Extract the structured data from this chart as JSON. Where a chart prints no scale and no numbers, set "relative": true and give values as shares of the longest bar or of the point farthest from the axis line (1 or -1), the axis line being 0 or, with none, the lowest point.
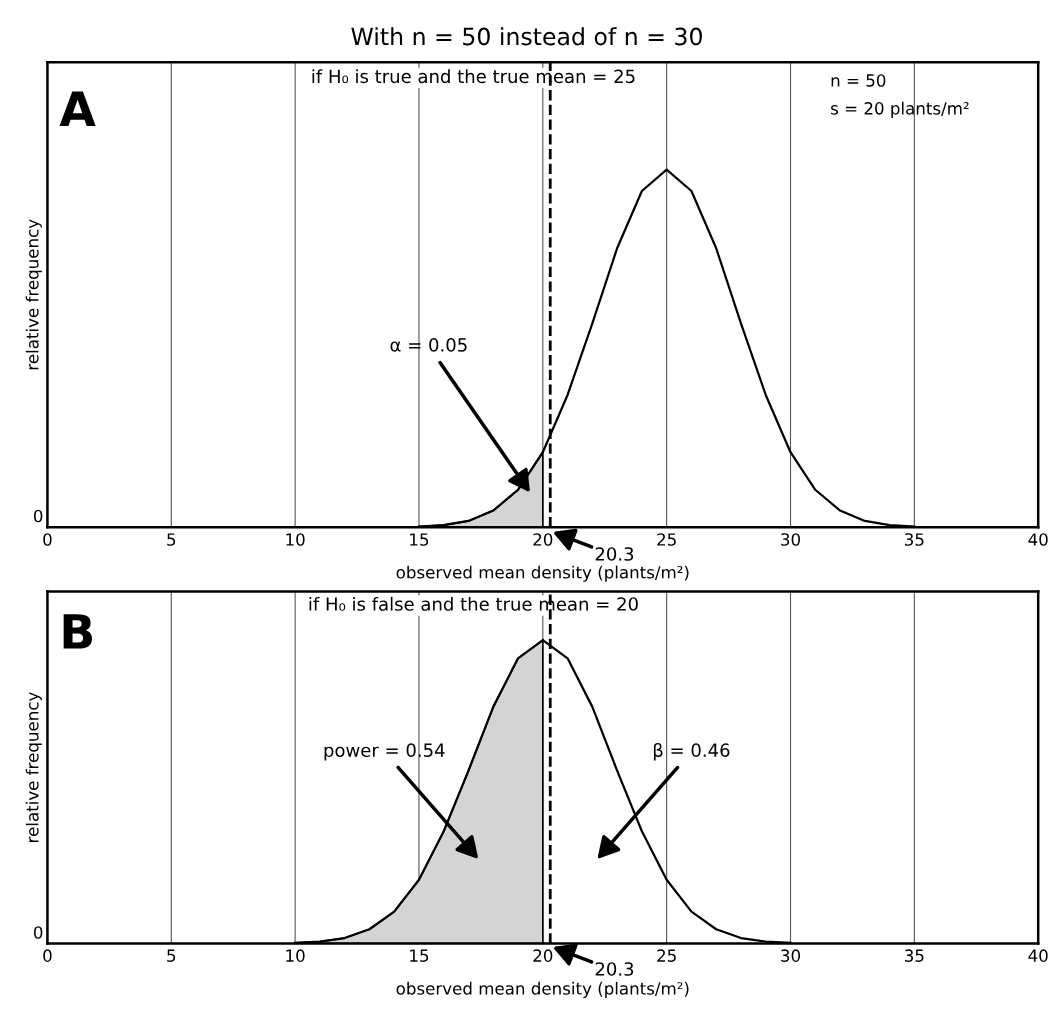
{
  "chart_data": [
    {
      "type": "line",
      "title": "With n = 50 instead of n = 30",
      "subtitle": "if H₀ is true and the true mean = 25",
      "xlabel": "observed mean density (plants/m²)",
      "ylabel": "relative frequency",
      "relative": true,
      "xlim": [
        0,
        40
      ],
      "xticks": [
        0,
        5,
        10,
        15,
        20,
        25,
        30,
        35,
        40
      ],
      "grid": "x",
      "series": [
        {
          "color": "#000000",
          "x": [
            15,
            16,
            17,
            18,
            19,
            20,
            21,
            22,
            23,
            24,
            25,
            26,
            27,
            28,
            29,
            30,
            31,
            32,
            33,
            34,
            35
          ],
          "values": [
            0.002,
            0.006,
            0.018,
            0.047,
            0.105,
            0.21,
            0.37,
            0.57,
            0.78,
            0.94,
            1,
            0.94,
            0.78,
            0.57,
            0.37,
            0.21,
            0.105,
            0.047,
            0.018,
            0.006,
            0.002
          ]
        },
        {
          "type": "area",
          "color": "#d4d4d4",
          "x": [
            15,
            16,
            17,
            18,
            19,
            20
          ],
          "values": [
            0.002,
            0.006,
            0.018,
            0.047,
            0.105,
            0.21
          ]
        }
      ],
      "ref_lines": [
        {
          "axis": "x",
          "value": 20.3,
          "label": "20.3",
          "line_style": "dashed",
          "color": "#000000"
        }
      ],
      "annotations": [
        "A",
        "n = 50",
        "s = 20 plants/m²",
        "α = 0.05",
        "0"
      ]
    },
    {
      "type": "line",
      "subtitle": "if H₀ is false and the true mean = 20",
      "xlabel": "observed mean density (plants/m²)",
      "ylabel": "relative frequency",
      "relative": true,
      "xlim": [
        0,
        40
      ],
      "xticks": [
        0,
        5,
        10,
        15,
        20,
        25,
        30,
        35,
        40
      ],
      "grid": "x",
      "series": [
        {
          "color": "#000000",
          "x": [
            10,
            11,
            12,
            13,
            14,
            15,
            16,
            17,
            18,
            19,
            20,
            21,
            22,
            23,
            24,
            25,
            26,
            27,
            28,
            29,
            30
          ],
          "values": [
            0.002,
            0.006,
            0.018,
            0.047,
            0.105,
            0.21,
            0.37,
            0.57,
            0.78,
            0.94,
            1,
            0.94,
            0.78,
            0.57,
            0.37,
            0.21,
            0.105,
            0.047,
            0.018,
            0.006,
            0.002
          ]
        },
        {
          "type": "area",
          "color": "#d4d4d4",
          "x": [
            10,
            11,
            12,
            13,
            14,
            15,
            16,
            17,
            18,
            19,
            20
          ],
          "values": [
            0.002,
            0.006,
            0.018,
            0.047,
            0.105,
            0.21,
            0.37,
            0.57,
            0.78,
            0.94,
            1
          ]
        }
      ],
      "ref_lines": [
        {
          "axis": "x",
          "value": 20.3,
          "label": "20.3",
          "line_style": "dashed",
          "color": "#000000"
        }
      ],
      "annotations": [
        "B",
        "power = 0.54",
        "β = 0.46",
        "0"
      ]
    }
  ]
}
